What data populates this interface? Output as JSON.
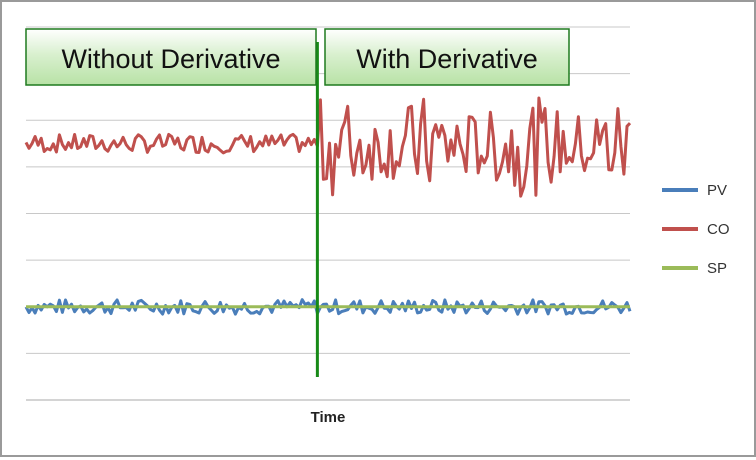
{
  "chart_data": {
    "type": "line",
    "title": "",
    "xlabel": "Time",
    "ylabel": "",
    "xlim": [
      0,
      199
    ],
    "ylim": [
      0,
      8
    ],
    "grid": true,
    "legend_position": "right",
    "annotations": [
      {
        "label": "Without Derivative"
      },
      {
        "label": "With Derivative"
      }
    ],
    "series": [
      {
        "name": "PV",
        "color": "#4a7eba"
      },
      {
        "name": "CO",
        "color": "#c0504d"
      },
      {
        "name": "SP",
        "color": "#9bbb59",
        "constant": 2
      }
    ]
  }
}
